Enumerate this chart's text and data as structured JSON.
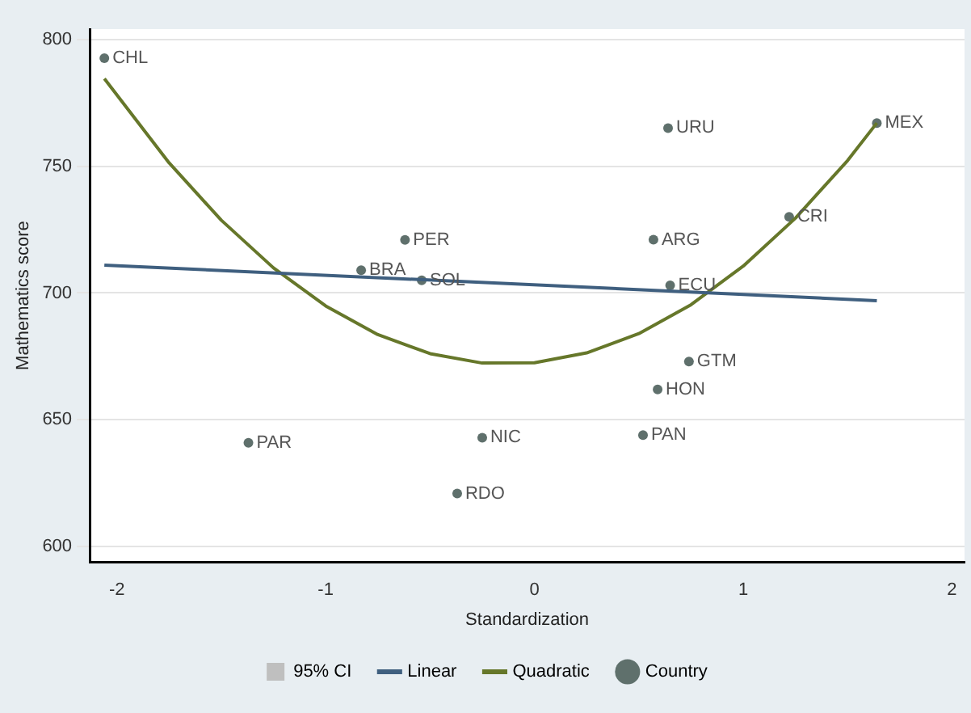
{
  "chart_data": {
    "type": "scatter",
    "xlabel": "Standardization",
    "ylabel": "Mathematics score",
    "xlim": [
      -2.13,
      2.06
    ],
    "xticks": [
      -2,
      -1,
      0,
      1,
      2
    ],
    "ylim": [
      594,
      804
    ],
    "yticks": [
      600,
      650,
      700,
      750,
      800
    ],
    "grid": "y",
    "legend": "bottom",
    "series": [
      {
        "name": "95% CI",
        "type": "area",
        "color": "#bfbfbf"
      },
      {
        "name": "Linear",
        "type": "line",
        "color": "#3f5f7f",
        "x": [
          -2.06,
          1.64
        ],
        "values": [
          711,
          697
        ]
      },
      {
        "name": "Quadratic",
        "type": "line",
        "color": "#66772a",
        "x": [
          -2.06,
          -1.75,
          -1.5,
          -1.25,
          -1.0,
          -0.75,
          -0.5,
          -0.25,
          0,
          0.25,
          0.5,
          0.75,
          1.0,
          1.25,
          1.5,
          1.64
        ],
        "values": [
          784.5,
          751.3,
          728.7,
          709.9,
          694.9,
          683.6,
          676.1,
          672.4,
          672.5,
          676.4,
          684,
          695.4,
          710.6,
          729.5,
          752.2,
          767
        ]
      },
      {
        "name": "Country",
        "type": "scatter",
        "marker": "circle",
        "color": "#5f706c",
        "x": [
          -2.06,
          -0.62,
          -0.83,
          -0.54,
          0.64,
          1.64,
          1.22,
          0.57,
          0.65,
          0.74,
          0.59,
          0.52,
          -0.25,
          -0.37,
          -1.37
        ],
        "values": [
          792.5,
          720.9,
          709,
          705,
          765,
          767,
          730,
          721,
          703,
          673,
          662,
          644,
          643,
          621,
          641
        ]
      }
    ],
    "annotations": [
      {
        "text": "CHL",
        "x": -2.06,
        "y": 792.5
      },
      {
        "text": "PER",
        "x": -0.62,
        "y": 720.9
      },
      {
        "text": "BRA",
        "x": -0.83,
        "y": 709
      },
      {
        "text": "SOL",
        "x": -0.54,
        "y": 705
      },
      {
        "text": "URU",
        "x": 0.64,
        "y": 765
      },
      {
        "text": "MEX",
        "x": 1.64,
        "y": 767
      },
      {
        "text": "CRI",
        "x": 1.22,
        "y": 730
      },
      {
        "text": "ARG",
        "x": 0.57,
        "y": 721
      },
      {
        "text": "ECU",
        "x": 0.65,
        "y": 703
      },
      {
        "text": "GTM",
        "x": 0.74,
        "y": 673
      },
      {
        "text": "HON",
        "x": 0.59,
        "y": 662
      },
      {
        "text": "PAN",
        "x": 0.52,
        "y": 644
      },
      {
        "text": "NIC",
        "x": -0.25,
        "y": 643
      },
      {
        "text": "RDO",
        "x": -0.37,
        "y": 621
      },
      {
        "text": "PAR",
        "x": -1.37,
        "y": 641
      }
    ]
  }
}
